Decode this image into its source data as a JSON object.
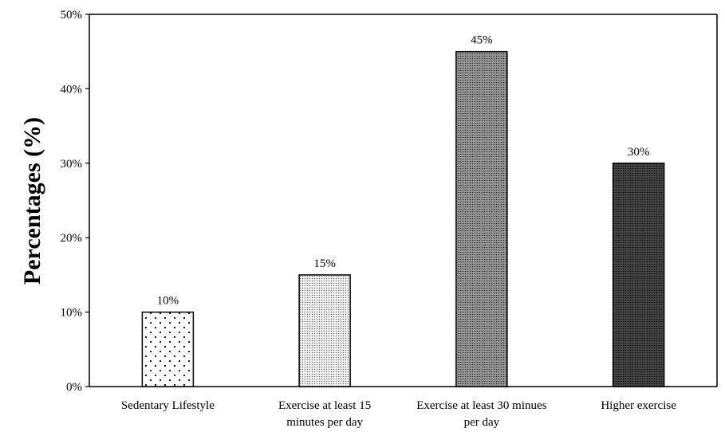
{
  "chart_data": {
    "type": "bar",
    "title": "",
    "xlabel": "",
    "ylabel": "Percentages (%)",
    "ylim": [
      0,
      50
    ],
    "y_ticks": [
      0,
      10,
      20,
      30,
      40,
      50
    ],
    "y_tick_labels": [
      "0%",
      "10%",
      "20%",
      "30%",
      "40%",
      "50%"
    ],
    "categories": [
      [
        "Sedentary Lifestyle"
      ],
      [
        "Exercise at least 15",
        "minutes per day"
      ],
      [
        "Exercise at least 30 minues",
        "per day"
      ],
      [
        "Higher exercise"
      ]
    ],
    "values": [
      10,
      15,
      45,
      30
    ],
    "data_labels": [
      "10%",
      "15%",
      "45%",
      "30%"
    ],
    "patterns": [
      "sparse-dots",
      "light-dots",
      "dense-dots",
      "dark-dots"
    ],
    "grid": false,
    "legend": "none"
  }
}
